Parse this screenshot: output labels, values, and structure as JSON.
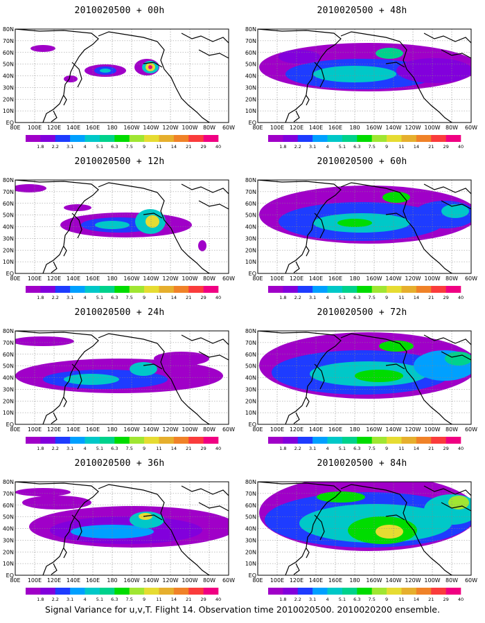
{
  "caption": "Signal Variance for u,v,T. Flight 14. Observation time 2010020500. 2010020200 ensemble.",
  "longitude_labels": [
    "80E",
    "100E",
    "120E",
    "140E",
    "160E",
    "180",
    "160W",
    "140W",
    "120W",
    "100W",
    "80W",
    "60W"
  ],
  "latitude_labels": [
    "EQ",
    "10N",
    "20N",
    "30N",
    "40N",
    "50N",
    "60N",
    "70N",
    "80N"
  ],
  "colorbar": {
    "labels": [
      "1.8",
      "2.2",
      "3.1",
      "4",
      "5.1",
      "6.3",
      "7.5",
      "9",
      "11",
      "14",
      "21",
      "29",
      "40"
    ],
    "colors": [
      "#a000c8",
      "#8200dc",
      "#1e3cff",
      "#00a0ff",
      "#00c8c8",
      "#00d28c",
      "#00dc00",
      "#a0e632",
      "#e6dc32",
      "#e6af2d",
      "#f08228",
      "#fa3c3c",
      "#f00082"
    ]
  },
  "panels": [
    {
      "title": "2010020500 + 00h",
      "level": 0
    },
    {
      "title": "2010020500 + 48h",
      "level": 4
    },
    {
      "title": "2010020500 + 12h",
      "level": 1
    },
    {
      "title": "2010020500 + 60h",
      "level": 5
    },
    {
      "title": "2010020500 + 24h",
      "level": 2
    },
    {
      "title": "2010020500 + 72h",
      "level": 6
    },
    {
      "title": "2010020500 + 36h",
      "level": 3
    },
    {
      "title": "2010020500 + 84h",
      "level": 7
    }
  ]
}
